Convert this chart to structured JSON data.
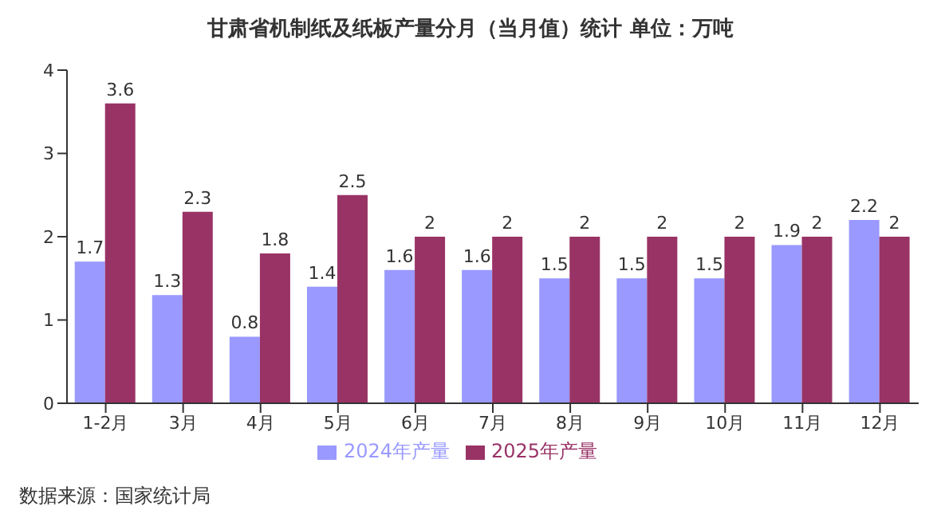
{
  "chart_data": {
    "type": "bar",
    "title": "甘肃省机制纸及纸板产量分月（当月值）统计 单位：万吨",
    "categories": [
      "1-2月",
      "3月",
      "4月",
      "5月",
      "6月",
      "7月",
      "8月",
      "9月",
      "10月",
      "11月",
      "12月"
    ],
    "series": [
      {
        "name": "2024年产量",
        "color": "#9999ff",
        "values": [
          1.7,
          1.3,
          0.8,
          1.4,
          1.6,
          1.6,
          1.5,
          1.5,
          1.5,
          1.9,
          2.2
        ]
      },
      {
        "name": "2025年产量",
        "color": "#993366",
        "values": [
          3.6,
          2.3,
          1.8,
          2.5,
          2,
          2,
          2,
          2,
          2,
          2,
          2
        ]
      }
    ],
    "ylim": [
      0,
      4
    ],
    "yticks": [
      0,
      1,
      2,
      3,
      4
    ],
    "data_labels": true,
    "legend": "bottom",
    "annotations": [
      "数据来源：国家统计局"
    ]
  }
}
